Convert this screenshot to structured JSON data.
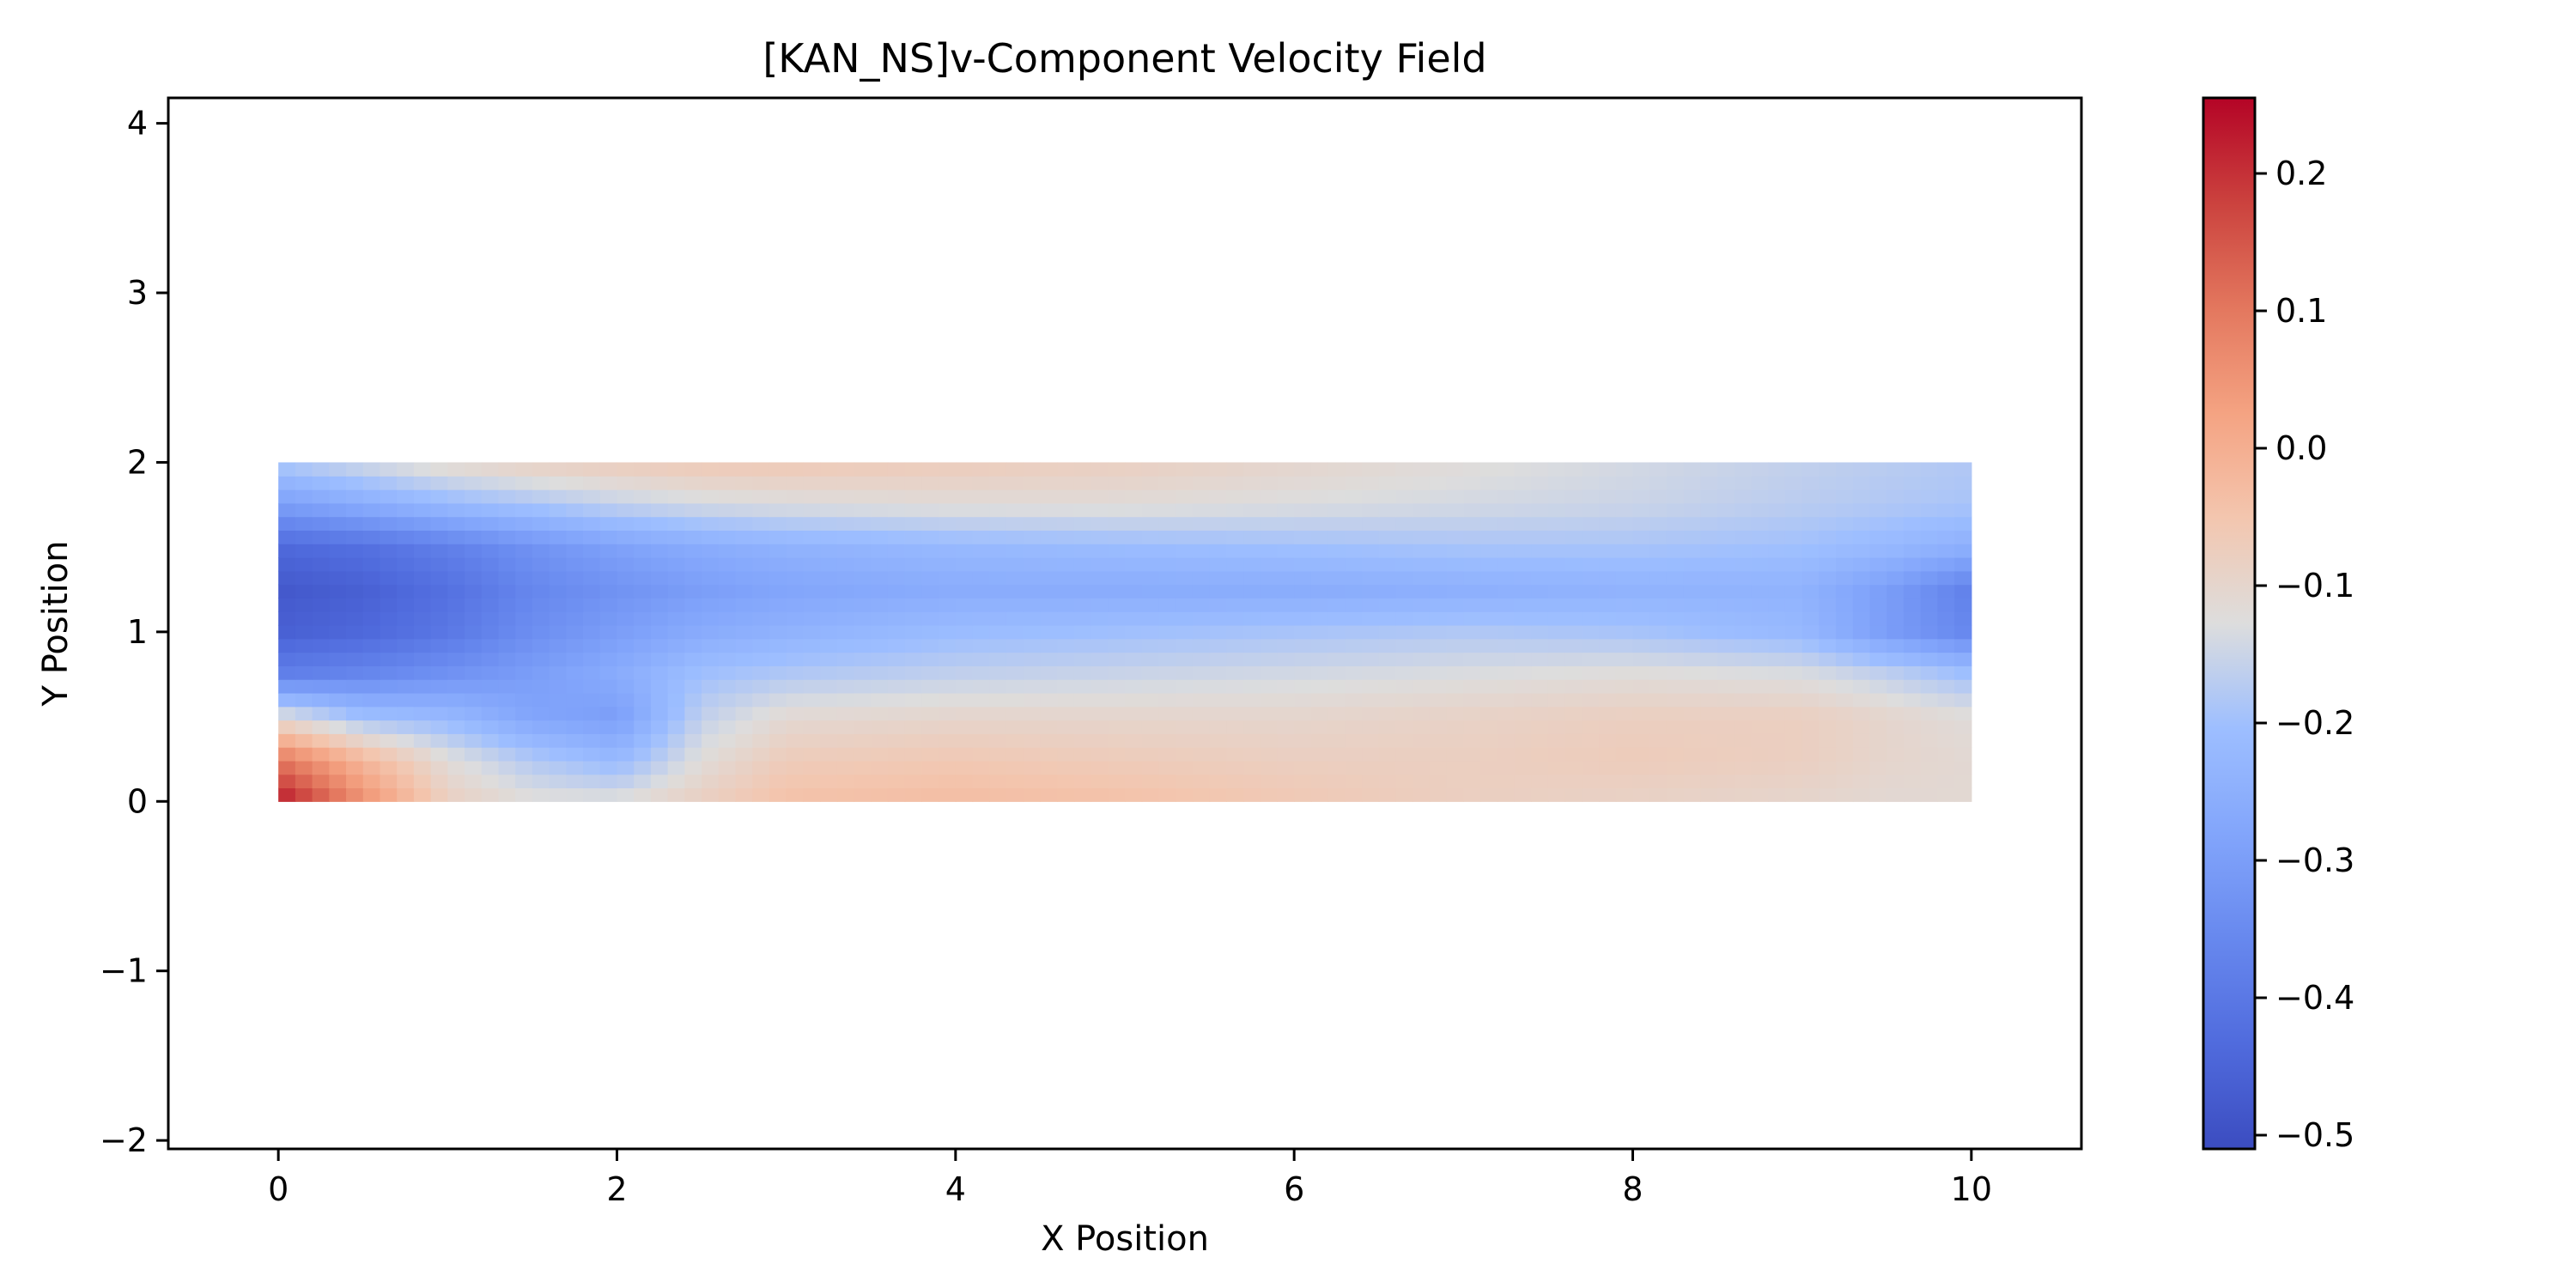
{
  "chart_data": {
    "type": "heatmap",
    "title": "[KAN_NS]v-Component Velocity Field",
    "xlabel": "X Position",
    "ylabel": "Y Position",
    "xlim": [
      -0.65,
      10.65
    ],
    "ylim": [
      -2.05,
      4.15
    ],
    "x_ticks": [
      0,
      2,
      4,
      6,
      8,
      10
    ],
    "y_ticks": [
      -2,
      -1,
      0,
      1,
      2,
      3,
      4
    ],
    "x_tick_labels": [
      "0",
      "2",
      "4",
      "6",
      "8",
      "10"
    ],
    "y_tick_labels": [
      "−2",
      "−1",
      "0",
      "1",
      "2",
      "3",
      "4"
    ],
    "field_extent": {
      "x": [
        0,
        10
      ],
      "y": [
        0,
        2
      ]
    },
    "colormap": "coolwarm",
    "colorbar": {
      "vmin": -0.51,
      "vmax": 0.255,
      "ticks": [
        -0.5,
        -0.4,
        -0.3,
        -0.2,
        -0.1,
        0.0,
        0.1,
        0.2
      ],
      "tick_labels": [
        "−0.5",
        "−0.4",
        "−0.3",
        "−0.2",
        "−0.1",
        "0.0",
        "0.1",
        "0.2"
      ]
    },
    "grid": false,
    "field_samples": {
      "x": [
        0,
        0.5,
        1,
        1.5,
        2,
        2.5,
        3,
        4,
        5,
        6,
        7,
        8,
        9,
        9.5,
        10
      ],
      "y": [
        0,
        0.25,
        0.5,
        0.75,
        1.0,
        1.25,
        1.5,
        1.75,
        2.0
      ],
      "v": [
        [
          0.24,
          0.06,
          -0.08,
          -0.12,
          -0.12,
          -0.08,
          -0.04,
          -0.03,
          -0.04,
          -0.06,
          -0.08,
          -0.09,
          -0.1,
          -0.11,
          -0.11
        ],
        [
          0.1,
          -0.02,
          -0.12,
          -0.18,
          -0.22,
          -0.12,
          -0.07,
          -0.06,
          -0.07,
          -0.08,
          -0.08,
          -0.07,
          -0.08,
          -0.1,
          -0.11
        ],
        [
          -0.12,
          -0.2,
          -0.22,
          -0.28,
          -0.3,
          -0.16,
          -0.11,
          -0.1,
          -0.1,
          -0.1,
          -0.09,
          -0.08,
          -0.08,
          -0.1,
          -0.12
        ],
        [
          -0.38,
          -0.36,
          -0.33,
          -0.3,
          -0.26,
          -0.2,
          -0.18,
          -0.16,
          -0.15,
          -0.14,
          -0.13,
          -0.12,
          -0.13,
          -0.16,
          -0.2
        ],
        [
          -0.46,
          -0.44,
          -0.4,
          -0.34,
          -0.3,
          -0.26,
          -0.24,
          -0.21,
          -0.2,
          -0.19,
          -0.18,
          -0.19,
          -0.22,
          -0.3,
          -0.36
        ],
        [
          -0.48,
          -0.46,
          -0.42,
          -0.36,
          -0.33,
          -0.3,
          -0.28,
          -0.26,
          -0.26,
          -0.26,
          -0.25,
          -0.24,
          -0.24,
          -0.3,
          -0.38
        ],
        [
          -0.44,
          -0.42,
          -0.38,
          -0.33,
          -0.29,
          -0.26,
          -0.24,
          -0.22,
          -0.21,
          -0.2,
          -0.19,
          -0.19,
          -0.2,
          -0.22,
          -0.25
        ],
        [
          -0.3,
          -0.26,
          -0.22,
          -0.19,
          -0.16,
          -0.14,
          -0.13,
          -0.12,
          -0.12,
          -0.13,
          -0.14,
          -0.15,
          -0.17,
          -0.18,
          -0.19
        ],
        [
          -0.18,
          -0.14,
          -0.1,
          -0.08,
          -0.07,
          -0.06,
          -0.06,
          -0.07,
          -0.08,
          -0.1,
          -0.12,
          -0.14,
          -0.16,
          -0.17,
          -0.18
        ]
      ]
    }
  }
}
